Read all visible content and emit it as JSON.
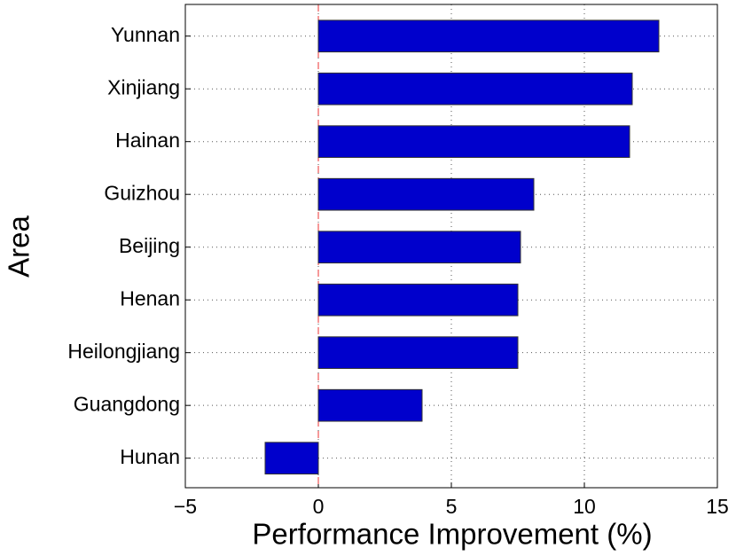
{
  "chart_data": {
    "type": "barh",
    "categories": [
      "Yunnan",
      "Xinjiang",
      "Hainan",
      "Guizhou",
      "Beijing",
      "Henan",
      "Heilongjiang",
      "Guangdong",
      "Hunan"
    ],
    "values": [
      12.8,
      11.8,
      11.7,
      8.1,
      7.6,
      7.5,
      7.5,
      3.9,
      -2.0
    ],
    "color": "#0000cc",
    "x_label": "Performance Improvement (%)",
    "y_label": "Area",
    "xlim": [
      -5,
      15
    ],
    "xticks": [
      {
        "value": -5,
        "label": "−5"
      },
      0,
      5,
      10,
      15
    ],
    "grid": true
  }
}
